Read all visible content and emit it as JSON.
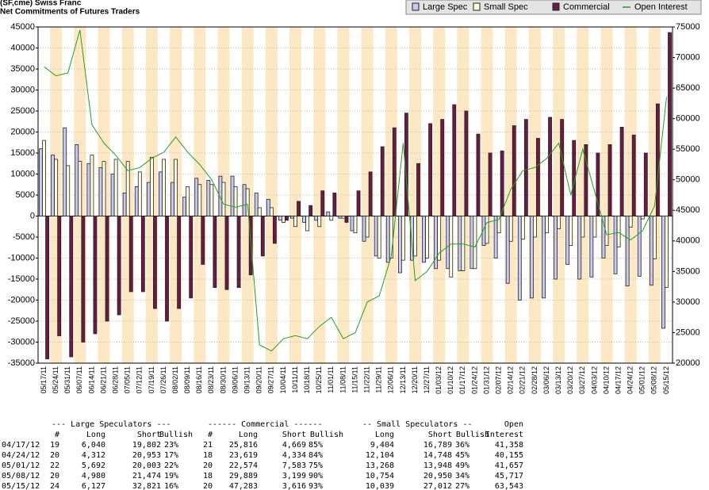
{
  "chart_data": {
    "type": "bar",
    "title": "(SF,cme) Swiss Franc",
    "subtitle": "Net Commitments of Futures Traders",
    "categories": [
      "05/17/11",
      "05/24/11",
      "05/31/11",
      "06/07/11",
      "06/14/11",
      "06/21/11",
      "06/28/11",
      "07/05/11",
      "07/12/11",
      "07/19/11",
      "07/26/11",
      "08/02/11",
      "08/09/11",
      "08/16/11",
      "08/23/11",
      "08/30/11",
      "09/06/11",
      "09/13/11",
      "09/20/11",
      "09/27/11",
      "10/04/11",
      "10/11/11",
      "10/18/11",
      "10/25/11",
      "11/01/11",
      "11/08/11",
      "11/15/11",
      "11/22/11",
      "11/29/11",
      "12/06/11",
      "12/13/11",
      "12/20/11",
      "12/27/11",
      "01/03/12",
      "01/10/12",
      "01/17/12",
      "01/24/12",
      "01/31/12",
      "02/07/12",
      "02/14/12",
      "02/21/12",
      "02/28/12",
      "03/06/12",
      "03/13/12",
      "03/20/12",
      "03/27/12",
      "04/03/12",
      "04/10/12",
      "04/17/12",
      "04/24/12",
      "05/01/12",
      "05/08/12",
      "05/15/12"
    ],
    "series": [
      {
        "name": "Large Spec",
        "color": "#c8c8f0",
        "values": [
          16000,
          14500,
          21000,
          17000,
          12500,
          11500,
          10000,
          5500,
          7000,
          8000,
          10500,
          8000,
          4500,
          9000,
          8500,
          9500,
          9500,
          7500,
          5500,
          4000,
          -1000,
          -500,
          -1500,
          -1000,
          1000,
          -500,
          -3500,
          -6000,
          -9500,
          -11000,
          -13500,
          -10500,
          -11000,
          -12500,
          -12500,
          -13000,
          -12500,
          -7000,
          -10000,
          -16000,
          -20000,
          -19500,
          -19500,
          -15000,
          -11500,
          -15000,
          -14500,
          -10000,
          -13762,
          -16641,
          -14311,
          -16470,
          -26694
        ]
      },
      {
        "name": "Small Spec",
        "color": "#ffffe0",
        "values": [
          18000,
          13500,
          12000,
          13000,
          14500,
          13000,
          13500,
          13000,
          10500,
          14000,
          13500,
          13500,
          7000,
          7500,
          7500,
          8000,
          7000,
          6500,
          2000,
          2000,
          -1500,
          -2500,
          -3500,
          -2500,
          -1000,
          -500,
          -4000,
          -5000,
          -10000,
          -10000,
          -10500,
          -9500,
          -10000,
          -10500,
          -14500,
          -13000,
          -12500,
          -6500,
          -4000,
          -6000,
          -5500,
          -5000,
          -4000,
          -3000,
          -7000,
          -5000,
          -5000,
          -7000,
          -7385,
          -2644,
          -680,
          -10196,
          -16973
        ]
      },
      {
        "name": "Commercial",
        "color": "#6b1a42",
        "values": [
          -34000,
          -28500,
          -33500,
          -30000,
          -28000,
          -25000,
          -23500,
          -18000,
          -18000,
          -22000,
          -25000,
          -22000,
          -19500,
          -11500,
          -17000,
          -17500,
          -17000,
          -14000,
          -9500,
          -6500,
          -1000,
          3500,
          2500,
          6000,
          5500,
          -1500,
          6000,
          10500,
          16500,
          21000,
          24500,
          12500,
          22000,
          23000,
          26500,
          25000,
          19500,
          15000,
          15500,
          21500,
          23000,
          18500,
          23500,
          23000,
          18000,
          17000,
          15000,
          17000,
          21147,
          19285,
          14991,
          26690,
          43667
        ]
      },
      {
        "name": "Open Interest",
        "color": "#22a022",
        "axis": "y2",
        "values": [
          68500,
          67000,
          67500,
          74500,
          59000,
          56000,
          54000,
          51500,
          52000,
          53500,
          54500,
          57000,
          54500,
          52500,
          50000,
          46000,
          45500,
          46000,
          23000,
          22000,
          24000,
          24500,
          24000,
          26000,
          27500,
          24000,
          25000,
          30000,
          31000,
          37500,
          56000,
          33500,
          35000,
          38000,
          39500,
          39500,
          39000,
          43000,
          43500,
          48500,
          51500,
          52000,
          53500,
          56000,
          47500,
          55000,
          48000,
          41000,
          41358,
          40155,
          41657,
          45717,
          63543
        ]
      }
    ],
    "ylim": [
      -35000,
      45000
    ],
    "yticks": [
      -35000,
      -30000,
      -25000,
      -20000,
      -15000,
      -10000,
      -5000,
      0,
      5000,
      10000,
      15000,
      20000,
      25000,
      30000,
      35000,
      40000,
      45000
    ],
    "y2lim": [
      20000,
      75000
    ],
    "y2ticks": [
      20000,
      25000,
      30000,
      35000,
      40000,
      45000,
      50000,
      55000,
      60000,
      65000,
      70000,
      75000
    ],
    "grid": true,
    "legend": "top-right"
  },
  "table": {
    "groups": [
      "--- Large Speculators ---",
      "------ Commercial ------",
      "-- Small Speculators --",
      "Open"
    ],
    "columns": [
      "#",
      "Long",
      "Short",
      "Bullish",
      "#",
      "Long",
      "Short",
      "Bullish",
      "Long",
      "Short",
      "Bullish",
      "Interest"
    ],
    "rows": [
      [
        "04/17/12",
        "19",
        "6,040",
        "19,802",
        "23%",
        "21",
        "25,816",
        "4,669",
        "85%",
        "9,404",
        "16,789",
        "36%",
        "41,358"
      ],
      [
        "04/24/12",
        "20",
        "4,312",
        "20,953",
        "17%",
        "18",
        "23,619",
        "4,334",
        "84%",
        "12,104",
        "14,748",
        "45%",
        "40,155"
      ],
      [
        "05/01/12",
        "22",
        "5,692",
        "20,003",
        "22%",
        "20",
        "22,574",
        "7,583",
        "75%",
        "13,268",
        "13,948",
        "49%",
        "41,657"
      ],
      [
        "05/08/12",
        "20",
        "4,980",
        "21,474",
        "19%",
        "18",
        "29,889",
        "3,199",
        "90%",
        "10,754",
        "20,950",
        "34%",
        "45,717"
      ],
      [
        "05/15/12",
        "24",
        "6,127",
        "32,821",
        "16%",
        "20",
        "47,283",
        "3,616",
        "93%",
        "10,039",
        "27,012",
        "27%",
        "63,543"
      ]
    ]
  }
}
